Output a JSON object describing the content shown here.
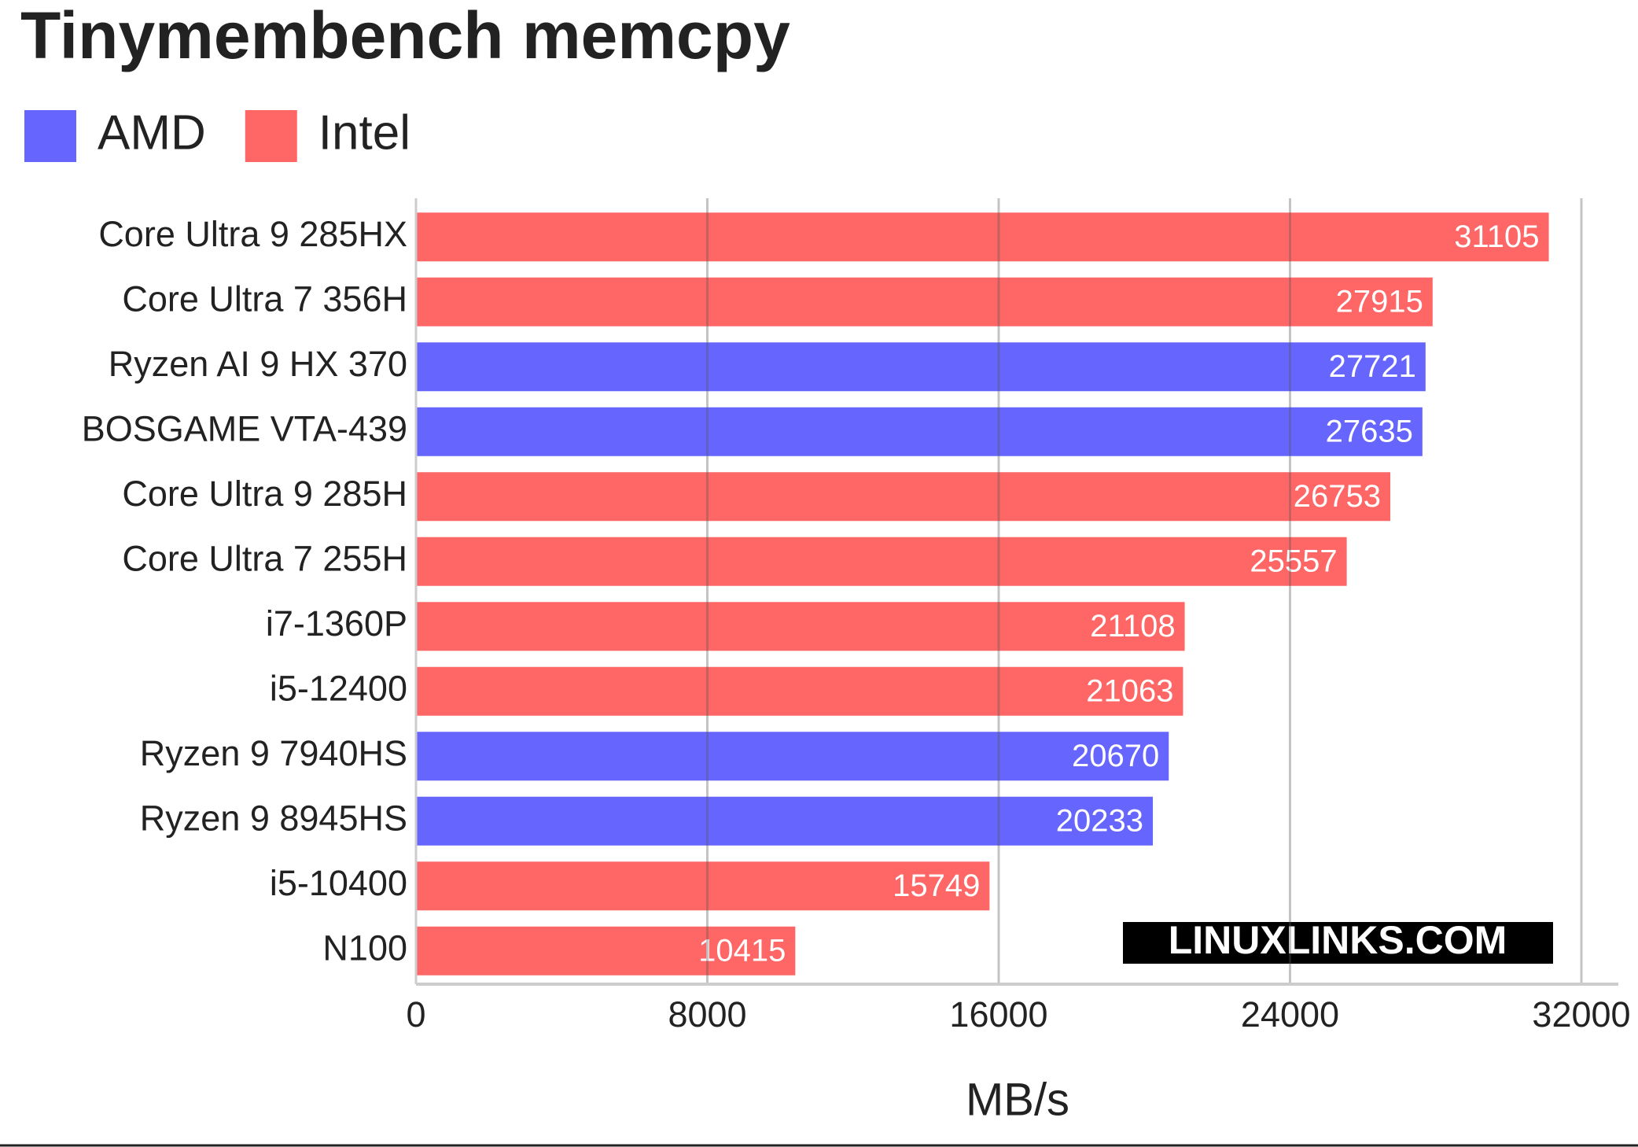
{
  "chart_data": {
    "type": "bar",
    "orientation": "horizontal",
    "title": "Tinymembench memcpy",
    "categories": [
      "Core Ultra 9 285HX",
      "Core Ultra 7 356H",
      "Ryzen AI 9 HX 370",
      "BOSGAME VTA-439",
      "Core Ultra 9 285H",
      "Core Ultra 7 255H",
      "i7-1360P",
      "i5-12400",
      "Ryzen 9 7940HS",
      "Ryzen 9 8945HS",
      "i5-10400",
      "N100"
    ],
    "series": [
      {
        "name": "AMD",
        "color": "#6666ff",
        "values": [
          null,
          null,
          27721,
          27635,
          null,
          null,
          null,
          null,
          20670,
          20233,
          null,
          null
        ]
      },
      {
        "name": "Intel",
        "color": "#ff6666",
        "values": [
          31105,
          27915,
          null,
          null,
          26753,
          25557,
          21108,
          21063,
          null,
          null,
          15749,
          10415
        ]
      }
    ],
    "xlabel": "MB/s",
    "xlim": [
      0,
      32000
    ],
    "xticks": [
      0,
      8000,
      16000,
      24000,
      32000
    ],
    "grid": true,
    "watermark": "LINUXLINKS.COM"
  }
}
